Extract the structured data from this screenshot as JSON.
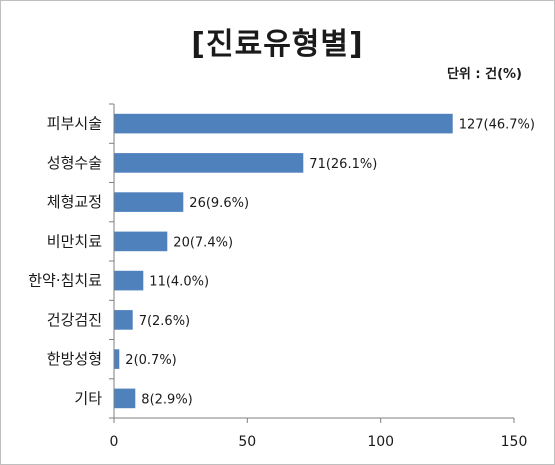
{
  "chart_data": {
    "type": "bar",
    "orientation": "horizontal",
    "title": "[진료유형별]",
    "unit_label": "단위 : 건(%)",
    "categories": [
      "피부시술",
      "성형수술",
      "체형교정",
      "비만치료",
      "한약·침치료",
      "건강검진",
      "한방성형",
      "기타"
    ],
    "values": [
      127,
      71,
      26,
      20,
      11,
      7,
      2,
      8
    ],
    "data_labels": [
      "127(46.7%)",
      "71(26.1%)",
      "26(9.6%)",
      "20(7.4%)",
      "11(4.0%)",
      "7(2.6%)",
      "2(0.7%)",
      "8(2.9%)"
    ],
    "xlim": [
      0,
      150
    ],
    "xticks": [
      0,
      50,
      100,
      150
    ],
    "xtick_labels": [
      "0",
      "50",
      "100",
      "150"
    ],
    "bar_color": "#4f81bd",
    "axis_color": "#7f7f7f",
    "grid": false,
    "legend": "none"
  }
}
